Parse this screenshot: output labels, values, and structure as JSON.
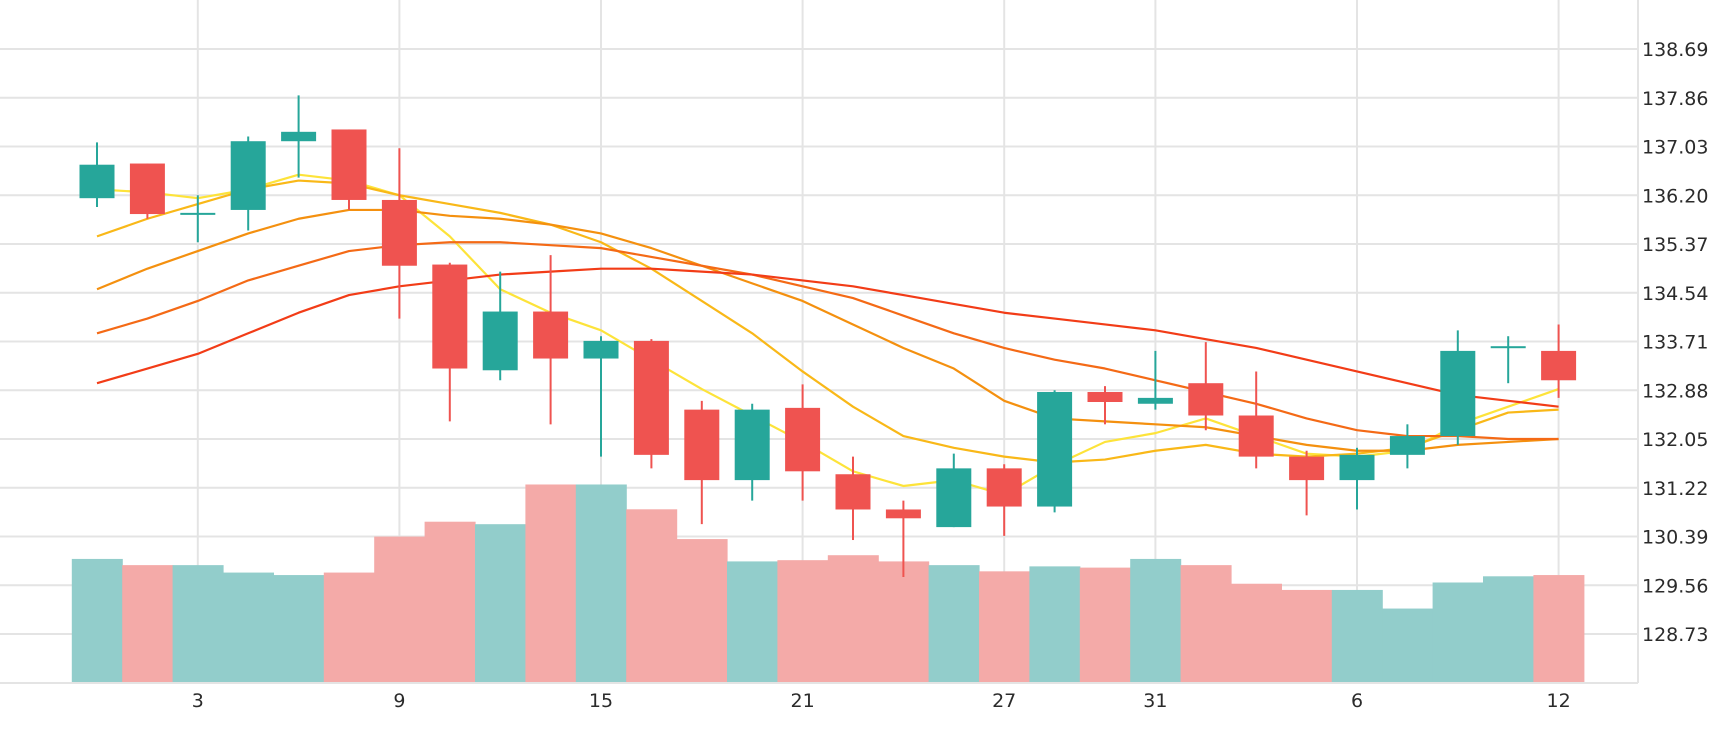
{
  "chart_data": {
    "type": "candlestick",
    "x_tick_labels": [
      "3",
      "9",
      "15",
      "21",
      "27",
      "31",
      "6",
      "12"
    ],
    "x_tick_indices": [
      2,
      6,
      10,
      14,
      18,
      21,
      25,
      29
    ],
    "y_tick_labels": [
      "128.73",
      "129.56",
      "130.39",
      "131.22",
      "132.05",
      "132.88",
      "133.71",
      "134.54",
      "135.37",
      "136.20",
      "137.03",
      "137.86",
      "138.69"
    ],
    "y_range": [
      127.9,
      139.1
    ],
    "grid": true,
    "candles": [
      {
        "open": 136.15,
        "high": 137.1,
        "low": 136.0,
        "close": 136.72
      },
      {
        "open": 136.74,
        "high": 136.74,
        "low": 135.8,
        "close": 135.88
      },
      {
        "open": 135.9,
        "high": 136.2,
        "low": 135.4,
        "close": 135.9
      },
      {
        "open": 135.95,
        "high": 137.2,
        "low": 135.6,
        "close": 137.12
      },
      {
        "open": 137.12,
        "high": 137.9,
        "low": 136.5,
        "close": 137.28
      },
      {
        "open": 137.32,
        "high": 137.32,
        "low": 135.95,
        "close": 136.12
      },
      {
        "open": 136.12,
        "high": 137.0,
        "low": 134.1,
        "close": 135.0
      },
      {
        "open": 135.02,
        "high": 135.05,
        "low": 132.35,
        "close": 133.25
      },
      {
        "open": 133.22,
        "high": 134.9,
        "low": 133.05,
        "close": 134.22
      },
      {
        "open": 134.22,
        "high": 135.18,
        "low": 132.3,
        "close": 133.42
      },
      {
        "open": 133.42,
        "high": 133.8,
        "low": 131.75,
        "close": 133.72
      },
      {
        "open": 133.72,
        "high": 133.75,
        "low": 131.55,
        "close": 131.78
      },
      {
        "open": 132.55,
        "high": 132.7,
        "low": 130.6,
        "close": 131.35
      },
      {
        "open": 131.35,
        "high": 132.65,
        "low": 131.0,
        "close": 132.55
      },
      {
        "open": 132.58,
        "high": 132.98,
        "low": 131.0,
        "close": 131.5
      },
      {
        "open": 131.45,
        "high": 131.75,
        "low": 130.33,
        "close": 130.85
      },
      {
        "open": 130.85,
        "high": 131.0,
        "low": 129.7,
        "close": 130.7
      },
      {
        "open": 130.55,
        "high": 131.8,
        "low": 130.55,
        "close": 131.55
      },
      {
        "open": 131.55,
        "high": 131.62,
        "low": 130.4,
        "close": 130.9
      },
      {
        "open": 130.9,
        "high": 132.88,
        "low": 130.8,
        "close": 132.85
      },
      {
        "open": 132.85,
        "high": 132.95,
        "low": 132.3,
        "close": 132.68
      },
      {
        "open": 132.65,
        "high": 133.55,
        "low": 132.55,
        "close": 132.75
      },
      {
        "open": 133.0,
        "high": 133.7,
        "low": 132.2,
        "close": 132.45
      },
      {
        "open": 132.45,
        "high": 133.2,
        "low": 131.55,
        "close": 131.75
      },
      {
        "open": 131.75,
        "high": 131.85,
        "low": 130.75,
        "close": 131.35
      },
      {
        "open": 131.35,
        "high": 131.9,
        "low": 130.85,
        "close": 131.78
      },
      {
        "open": 131.78,
        "high": 132.3,
        "low": 131.55,
        "close": 132.1
      },
      {
        "open": 132.1,
        "high": 133.9,
        "low": 131.95,
        "close": 133.55
      },
      {
        "open": 133.63,
        "high": 133.8,
        "low": 133.0,
        "close": 133.63
      },
      {
        "open": 133.55,
        "high": 134.0,
        "low": 132.75,
        "close": 133.05
      }
    ],
    "volume_series": {
      "values": [
        100,
        95,
        95,
        89,
        87,
        89,
        118,
        130,
        128,
        160,
        160,
        140,
        116,
        98,
        99,
        103,
        98,
        95,
        90,
        94,
        93,
        100,
        95,
        80,
        75,
        75,
        60,
        81,
        86,
        87
      ],
      "max": 162
    },
    "moving_averages": [
      {
        "color": "#fde33a",
        "values": [
          136.3,
          136.25,
          136.15,
          136.3,
          136.55,
          136.45,
          136.2,
          135.5,
          134.6,
          134.2,
          133.9,
          133.4,
          132.9,
          132.45,
          132.0,
          131.5,
          131.25,
          131.35,
          131.1,
          131.6,
          132.0,
          132.15,
          132.4,
          132.1,
          131.8,
          131.75,
          131.85,
          132.3,
          132.6,
          132.9
        ]
      },
      {
        "color": "#f9b818",
        "values": [
          135.5,
          135.8,
          136.05,
          136.3,
          136.45,
          136.4,
          136.2,
          136.05,
          135.9,
          135.7,
          135.4,
          134.95,
          134.4,
          133.85,
          133.2,
          132.6,
          132.1,
          131.9,
          131.75,
          131.65,
          131.7,
          131.85,
          131.95,
          131.8,
          131.75,
          131.8,
          131.9,
          132.2,
          132.5,
          132.55
        ]
      },
      {
        "color": "#f4900f",
        "values": [
          134.6,
          134.95,
          135.25,
          135.55,
          135.8,
          135.95,
          135.95,
          135.85,
          135.8,
          135.7,
          135.55,
          135.3,
          135.0,
          134.7,
          134.4,
          134.0,
          133.6,
          133.25,
          132.7,
          132.4,
          132.35,
          132.3,
          132.25,
          132.1,
          131.95,
          131.85,
          131.85,
          131.95,
          132.0,
          132.05
        ]
      },
      {
        "color": "#f46a16",
        "values": [
          133.85,
          134.1,
          134.4,
          134.75,
          135.0,
          135.25,
          135.35,
          135.4,
          135.4,
          135.35,
          135.3,
          135.15,
          135.0,
          134.85,
          134.65,
          134.45,
          134.15,
          133.85,
          133.6,
          133.4,
          133.25,
          133.05,
          132.85,
          132.65,
          132.4,
          132.2,
          132.1,
          132.1,
          132.05,
          132.05
        ]
      },
      {
        "color": "#f23c17",
        "values": [
          133.0,
          133.25,
          133.5,
          133.85,
          134.2,
          134.5,
          134.65,
          134.75,
          134.85,
          134.9,
          134.95,
          134.95,
          134.9,
          134.85,
          134.75,
          134.65,
          134.5,
          134.35,
          134.2,
          134.1,
          134.0,
          133.9,
          133.75,
          133.6,
          133.4,
          133.2,
          133.0,
          132.8,
          132.7,
          132.6
        ]
      }
    ],
    "colors": {
      "up": "#26a69a",
      "down": "#ef5350",
      "volume_up": "#92cdcb",
      "volume_down": "#f4aaa8",
      "grid": "#e4e4e4"
    }
  }
}
